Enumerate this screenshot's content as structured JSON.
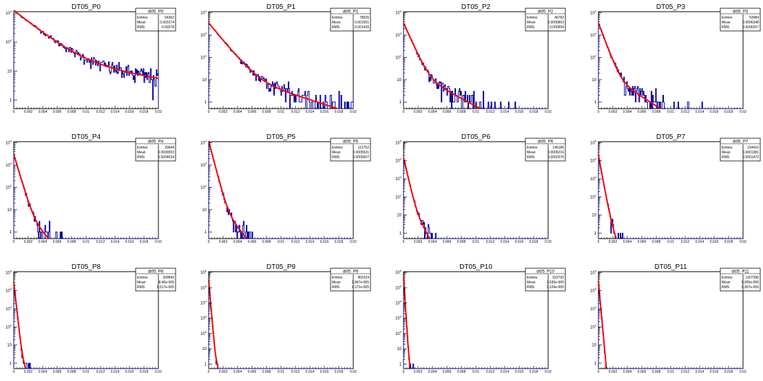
{
  "chart_data": {
    "type": "histogram-grid",
    "x_range": [
      0,
      0.02
    ],
    "x_ticks": [
      "0",
      "0.002",
      "0.004",
      "0.006",
      "0.008",
      "0.01",
      "0.012",
      "0.014",
      "0.016",
      "0.018",
      "0.02"
    ],
    "y_scale": "log",
    "colors": {
      "histogram": "#000099",
      "fit": "#ff0000"
    },
    "stat_labels": {
      "entries": "Entries",
      "mean": "Mean",
      "rms": "RMS"
    },
    "pads": [
      {
        "title": "DT05_P0",
        "stat_title": "dt05_P0",
        "entries": "54362",
        "mean": "0.003174",
        "rms": "0.00278",
        "y_max_exp": 3,
        "fit": {
          "A": 1200,
          "t1": 0.0022,
          "B": 40,
          "t2": 0.01
        }
      },
      {
        "title": "DT05_P1",
        "stat_title": "dt05_P1",
        "entries": "78526",
        "mean": "0.001551",
        "rms": "0.001439",
        "y_max_exp": 4,
        "fit": {
          "A": 3500,
          "t1": 0.0011,
          "B": 35,
          "t2": 0.0042
        }
      },
      {
        "title": "DT05_P2",
        "stat_title": "dt05_P2",
        "entries": "46782",
        "mean": "0.0006863",
        "rms": "0.000659",
        "y_max_exp": 4,
        "fit": {
          "A": 3500,
          "t1": 0.0006,
          "B": 35,
          "t2": 0.0025
        }
      },
      {
        "title": "DT05_P3",
        "stat_title": "dt05_P3",
        "entries": "53084",
        "mean": "0.0006348",
        "rms": "0.0006257",
        "y_max_exp": 4,
        "fit": {
          "A": 3500,
          "t1": 0.0005,
          "B": 30,
          "t2": 0.0021
        }
      },
      {
        "title": "DT05_P4",
        "stat_title": "dt05_P4",
        "entries": "39644",
        "mean": "0.0006553",
        "rms": "0.0004634",
        "y_max_exp": 4,
        "fit": {
          "A": 3000,
          "t1": 0.0004,
          "B": 20,
          "t2": 0.0013
        }
      },
      {
        "title": "DT05_P5",
        "stat_title": "dt05_P5",
        "entries": "112752",
        "mean": "0.0005531",
        "rms": "0.0005507",
        "y_max_exp": 4,
        "fit": {
          "A": 12000,
          "t1": 0.00035,
          "B": 60,
          "t2": 0.0011
        }
      },
      {
        "title": "DT05_P6",
        "stat_title": "dt05_P6",
        "entries": "146186",
        "mean": "0.0005216",
        "rms": "0.0002376",
        "y_max_exp": 5,
        "fit": {
          "A": 15000,
          "t1": 0.00025,
          "B": 200,
          "t2": 0.0006
        }
      },
      {
        "title": "DT05_P7",
        "stat_title": "dt05_P7",
        "entries": "154410",
        "mean": "0.0001381",
        "rms": "0.0001472",
        "y_max_exp": 5,
        "fit": {
          "A": 20000,
          "t1": 0.0002,
          "B": 200,
          "t2": 0.0004
        }
      },
      {
        "title": "DT05_P8",
        "stat_title": "dt05_P8",
        "entries": "309840",
        "mean": "8.46e-005",
        "rms": "8.517e-005",
        "y_max_exp": 5,
        "fit": {
          "A": 30000,
          "t1": 0.00012,
          "B": 100,
          "t2": 0.0003
        }
      },
      {
        "title": "DT05_P9",
        "stat_title": "dt05_P9",
        "entries": "402324",
        "mean": "3.967e-005",
        "rms": "4.172e-005",
        "y_max_exp": 6,
        "fit": {
          "A": 300000,
          "t1": 8e-05,
          "B": 100,
          "t2": 0.00025
        }
      },
      {
        "title": "DT05_P10",
        "stat_title": "dt05_P10",
        "entries": "622792",
        "mean": "3.635e-005",
        "rms": "3.124e-005",
        "y_max_exp": 6,
        "fit": {
          "A": 500000,
          "t1": 6e-05,
          "B": 50,
          "t2": 0.0002
        }
      },
      {
        "title": "DT05_P11",
        "stat_title": "dt05_P11",
        "entries": "1307396",
        "mean": "8.305e-006",
        "rms": "9.307e-006",
        "y_max_exp": 5,
        "fit": {
          "A": 30000,
          "t1": 0.0001,
          "B": 20,
          "t2": 0.00015
        }
      }
    ]
  }
}
